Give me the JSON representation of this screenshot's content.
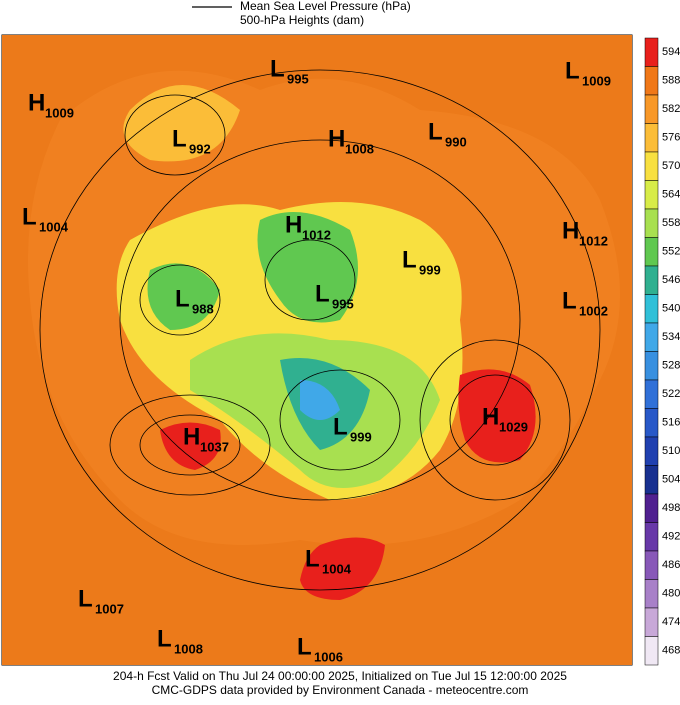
{
  "legend": {
    "pressure": "Mean Sea Level Pressure (hPa)",
    "heights": "500-hPa Heights (dam)"
  },
  "centers": [
    {
      "type": "H",
      "value": 1009
    },
    {
      "type": "L",
      "value": 995
    },
    {
      "type": "L",
      "value": 1009
    },
    {
      "type": "L",
      "value": 992
    },
    {
      "type": "H",
      "value": 1008
    },
    {
      "type": "L",
      "value": 990
    },
    {
      "type": "L",
      "value": 1004
    },
    {
      "type": "H",
      "value": 1012
    },
    {
      "type": "L",
      "value": 999
    },
    {
      "type": "H",
      "value": 1012
    },
    {
      "type": "L",
      "value": 988
    },
    {
      "type": "L",
      "value": 995
    },
    {
      "type": "L",
      "value": 1002
    },
    {
      "type": "H",
      "value": 1029
    },
    {
      "type": "H",
      "value": 1037
    },
    {
      "type": "L",
      "value": 999
    },
    {
      "type": "L",
      "value": 1004
    },
    {
      "type": "L",
      "value": 1007
    },
    {
      "type": "L",
      "value": 1008
    },
    {
      "type": "L",
      "value": 1006
    }
  ],
  "colorbar": {
    "levels": [
      594,
      588,
      582,
      576,
      570,
      564,
      558,
      552,
      546,
      540,
      534,
      528,
      522,
      516,
      510,
      504,
      498,
      492,
      486,
      480,
      474,
      468
    ],
    "colors": [
      "#e8201c",
      "#f07818",
      "#f89828",
      "#fbbd38",
      "#f8e040",
      "#d8ec48",
      "#a8e050",
      "#60c850",
      "#30b090",
      "#30c0d8",
      "#40a8e8",
      "#3890e0",
      "#3070d8",
      "#2858c8",
      "#2040b0",
      "#183090",
      "#502090",
      "#6838a8",
      "#8858b8",
      "#a880c8",
      "#c8a8d8",
      "#f0e8f4"
    ]
  },
  "footer": [
    "204-h Fcst Valid on Thu Jul 24 00:00:00 2025, Initialized on Tue Jul 15 12:00:00 2025",
    "CMC-GDPS data provided by Environment Canada - meteocentre.com"
  ]
}
